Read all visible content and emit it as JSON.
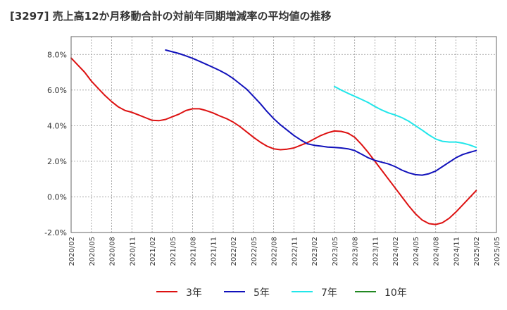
{
  "chart_data": {
    "type": "line",
    "title": "[3297]  売上高12か月移動合計の対前年同期増減率の平均値の推移",
    "xlabel": "",
    "ylabel": "",
    "ylim": [
      -2.0,
      9.0
    ],
    "y_ticks": [
      "-2.0%",
      "0.0%",
      "2.0%",
      "4.0%",
      "6.0%",
      "8.0%"
    ],
    "y_tick_values": [
      -2,
      0,
      2,
      4,
      6,
      8
    ],
    "x_ticks": [
      "2020/02",
      "2020/05",
      "2020/08",
      "2020/11",
      "2021/02",
      "2021/05",
      "2021/08",
      "2021/11",
      "2022/02",
      "2022/05",
      "2022/08",
      "2022/11",
      "2023/02",
      "2023/05",
      "2023/08",
      "2023/11",
      "2024/02",
      "2024/05",
      "2024/08",
      "2024/11",
      "2025/02",
      "2025/05"
    ],
    "grid": true,
    "legend_position": "bottom",
    "series": [
      {
        "name": "3年",
        "color": "#dd1111",
        "points": [
          [
            "2020/02",
            7.8
          ],
          [
            "2020/03",
            7.4
          ],
          [
            "2020/04",
            7.0
          ],
          [
            "2020/05",
            6.5
          ],
          [
            "2020/06",
            6.1
          ],
          [
            "2020/07",
            5.7
          ],
          [
            "2020/08",
            5.35
          ],
          [
            "2020/09",
            5.05
          ],
          [
            "2020/10",
            4.85
          ],
          [
            "2020/11",
            4.75
          ],
          [
            "2020/12",
            4.6
          ],
          [
            "2021/01",
            4.45
          ],
          [
            "2021/02",
            4.3
          ],
          [
            "2021/03",
            4.28
          ],
          [
            "2021/04",
            4.35
          ],
          [
            "2021/05",
            4.5
          ],
          [
            "2021/06",
            4.65
          ],
          [
            "2021/07",
            4.85
          ],
          [
            "2021/08",
            4.95
          ],
          [
            "2021/09",
            4.95
          ],
          [
            "2021/10",
            4.85
          ],
          [
            "2021/11",
            4.72
          ],
          [
            "2021/12",
            4.55
          ],
          [
            "2022/01",
            4.4
          ],
          [
            "2022/02",
            4.2
          ],
          [
            "2022/03",
            3.95
          ],
          [
            "2022/04",
            3.65
          ],
          [
            "2022/05",
            3.35
          ],
          [
            "2022/06",
            3.08
          ],
          [
            "2022/07",
            2.85
          ],
          [
            "2022/08",
            2.7
          ],
          [
            "2022/09",
            2.65
          ],
          [
            "2022/10",
            2.68
          ],
          [
            "2022/11",
            2.75
          ],
          [
            "2022/12",
            2.9
          ],
          [
            "2023/01",
            3.05
          ],
          [
            "2023/02",
            3.25
          ],
          [
            "2023/03",
            3.45
          ],
          [
            "2023/04",
            3.6
          ],
          [
            "2023/05",
            3.7
          ],
          [
            "2023/06",
            3.68
          ],
          [
            "2023/07",
            3.58
          ],
          [
            "2023/08",
            3.35
          ],
          [
            "2023/09",
            2.95
          ],
          [
            "2023/10",
            2.5
          ],
          [
            "2023/11",
            2.0
          ],
          [
            "2023/12",
            1.5
          ],
          [
            "2024/01",
            1.0
          ],
          [
            "2024/02",
            0.5
          ],
          [
            "2024/03",
            0.0
          ],
          [
            "2024/04",
            -0.5
          ],
          [
            "2024/05",
            -0.95
          ],
          [
            "2024/06",
            -1.3
          ],
          [
            "2024/07",
            -1.5
          ],
          [
            "2024/08",
            -1.55
          ],
          [
            "2024/09",
            -1.45
          ],
          [
            "2024/10",
            -1.2
          ],
          [
            "2024/11",
            -0.85
          ],
          [
            "2024/12",
            -0.45
          ],
          [
            "2025/01",
            -0.05
          ],
          [
            "2025/02",
            0.35
          ]
        ]
      },
      {
        "name": "5年",
        "color": "#1111bb",
        "points": [
          [
            "2021/04",
            8.25
          ],
          [
            "2021/05",
            8.15
          ],
          [
            "2021/06",
            8.05
          ],
          [
            "2021/07",
            7.92
          ],
          [
            "2021/08",
            7.78
          ],
          [
            "2021/09",
            7.62
          ],
          [
            "2021/10",
            7.45
          ],
          [
            "2021/11",
            7.28
          ],
          [
            "2021/12",
            7.1
          ],
          [
            "2022/01",
            6.9
          ],
          [
            "2022/02",
            6.65
          ],
          [
            "2022/03",
            6.35
          ],
          [
            "2022/04",
            6.05
          ],
          [
            "2022/05",
            5.65
          ],
          [
            "2022/06",
            5.25
          ],
          [
            "2022/07",
            4.8
          ],
          [
            "2022/08",
            4.4
          ],
          [
            "2022/09",
            4.05
          ],
          [
            "2022/10",
            3.75
          ],
          [
            "2022/11",
            3.45
          ],
          [
            "2022/12",
            3.2
          ],
          [
            "2023/01",
            2.98
          ],
          [
            "2023/02",
            2.9
          ],
          [
            "2023/03",
            2.85
          ],
          [
            "2023/04",
            2.8
          ],
          [
            "2023/05",
            2.78
          ],
          [
            "2023/06",
            2.75
          ],
          [
            "2023/07",
            2.7
          ],
          [
            "2023/08",
            2.6
          ],
          [
            "2023/09",
            2.4
          ],
          [
            "2023/10",
            2.2
          ],
          [
            "2023/11",
            2.05
          ],
          [
            "2023/12",
            1.95
          ],
          [
            "2024/01",
            1.85
          ],
          [
            "2024/02",
            1.7
          ],
          [
            "2024/03",
            1.5
          ],
          [
            "2024/04",
            1.35
          ],
          [
            "2024/05",
            1.25
          ],
          [
            "2024/06",
            1.22
          ],
          [
            "2024/07",
            1.3
          ],
          [
            "2024/08",
            1.45
          ],
          [
            "2024/09",
            1.7
          ],
          [
            "2024/10",
            1.95
          ],
          [
            "2024/11",
            2.2
          ],
          [
            "2024/12",
            2.38
          ],
          [
            "2025/01",
            2.5
          ],
          [
            "2025/02",
            2.6
          ]
        ]
      },
      {
        "name": "7年",
        "color": "#22e6ea",
        "points": [
          [
            "2023/05",
            6.2
          ],
          [
            "2023/06",
            6.0
          ],
          [
            "2023/07",
            5.82
          ],
          [
            "2023/08",
            5.65
          ],
          [
            "2023/09",
            5.48
          ],
          [
            "2023/10",
            5.3
          ],
          [
            "2023/11",
            5.08
          ],
          [
            "2023/12",
            4.88
          ],
          [
            "2024/01",
            4.72
          ],
          [
            "2024/02",
            4.6
          ],
          [
            "2024/03",
            4.45
          ],
          [
            "2024/04",
            4.25
          ],
          [
            "2024/05",
            4.0
          ],
          [
            "2024/06",
            3.75
          ],
          [
            "2024/07",
            3.48
          ],
          [
            "2024/08",
            3.25
          ],
          [
            "2024/09",
            3.12
          ],
          [
            "2024/10",
            3.08
          ],
          [
            "2024/11",
            3.08
          ],
          [
            "2024/12",
            3.02
          ],
          [
            "2025/01",
            2.92
          ],
          [
            "2025/02",
            2.78
          ]
        ]
      },
      {
        "name": "10年",
        "color": "#228822",
        "points": []
      }
    ]
  }
}
